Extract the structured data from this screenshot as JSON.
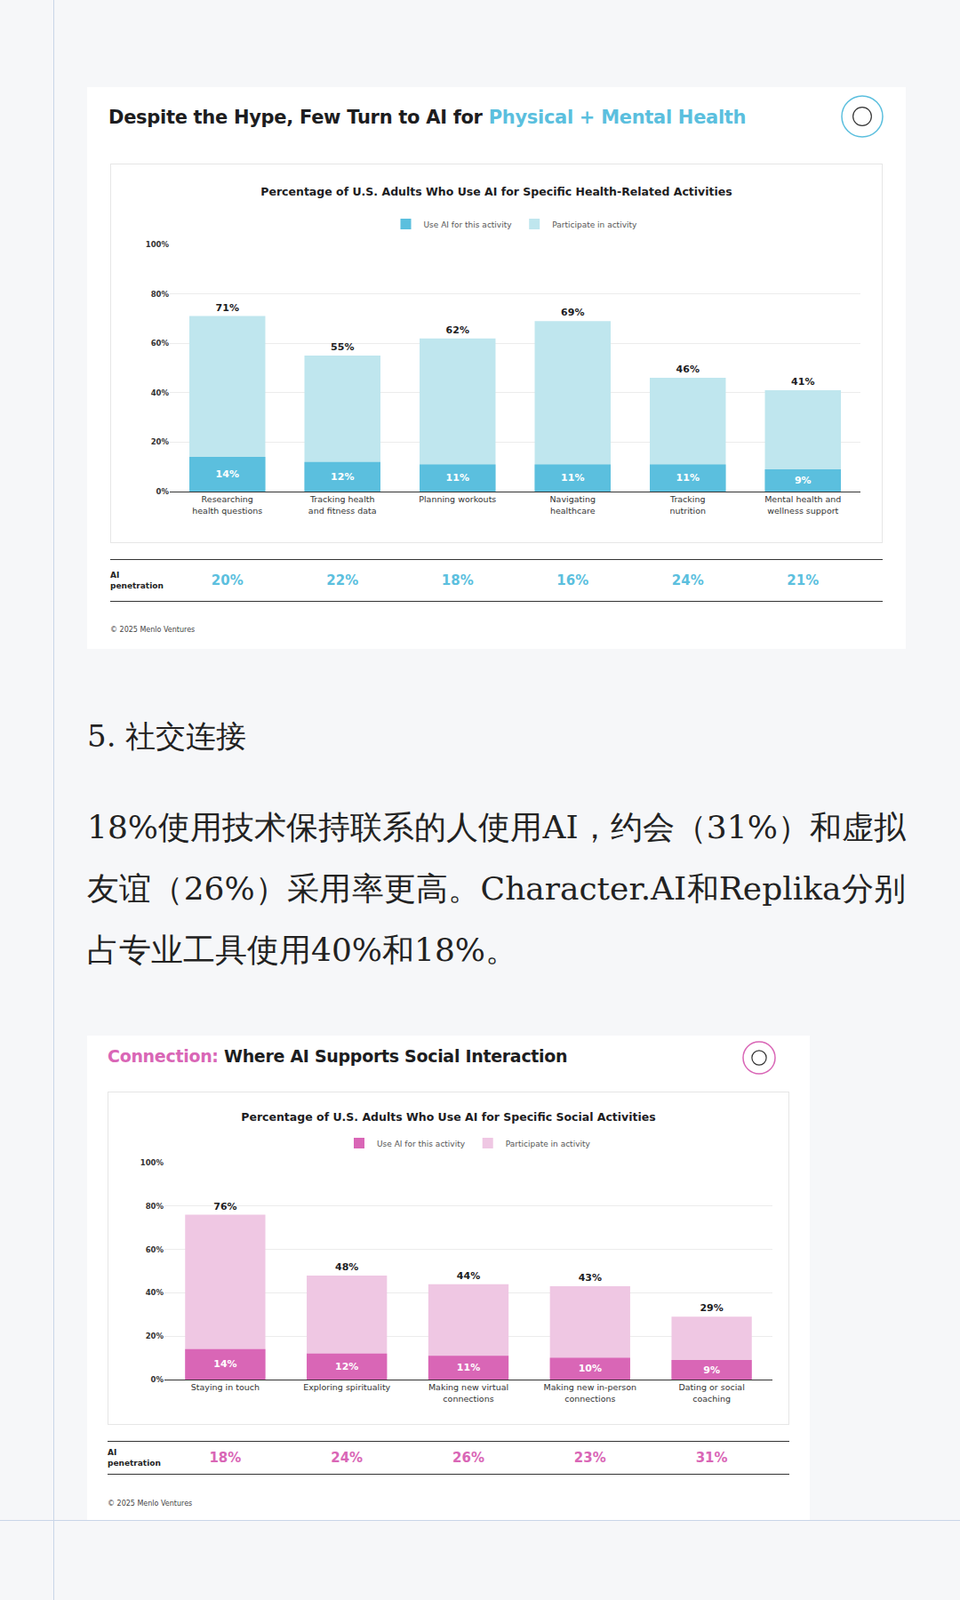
{
  "chart_data": [
    {
      "type": "bar",
      "title": "Despite the Hype, Few Turn to AI for Physical + Mental Health",
      "title_highlight": "Physical + Mental Health",
      "subtitle": "Percentage of U.S. Adults Who Use AI for Specific Health-Related Activities",
      "categories": [
        "Researching health questions",
        "Tracking health and fitness data",
        "Planning workouts",
        "Navigating healthcare",
        "Tracking nutrition",
        "Mental health and wellness support"
      ],
      "series": [
        {
          "name": "Use AI for this activity",
          "color": "#5bbfde",
          "values": [
            14,
            12,
            11,
            11,
            11,
            9
          ],
          "value_labels": [
            "14%",
            "12%",
            "11%",
            "11%",
            "11%",
            "9%"
          ]
        },
        {
          "name": "Participate in activity",
          "color": "#bfe6ee",
          "values": [
            71,
            55,
            62,
            69,
            46,
            41
          ],
          "value_labels": [
            "71%",
            "55%",
            "62%",
            "69%",
            "46%",
            "41%"
          ]
        }
      ],
      "ylim": [
        0,
        100
      ],
      "yticks": [
        {
          "value": 0,
          "label": "0%"
        },
        {
          "value": 20,
          "label": "20%"
        },
        {
          "value": 40,
          "label": "40%"
        },
        {
          "value": 60,
          "label": "60%"
        },
        {
          "value": 80,
          "label": "80%"
        },
        {
          "value": 100,
          "label": "100%"
        }
      ],
      "grid": true,
      "legend": "top",
      "data_labels": true,
      "stacked": false,
      "ai_penetration": {
        "label": "AI penetration",
        "values": [
          20,
          22,
          18,
          16,
          24,
          21
        ],
        "value_labels": [
          "20%",
          "22%",
          "18%",
          "16%",
          "24%",
          "21%"
        ]
      },
      "source": "© 2025 Menlo Ventures"
    },
    {
      "type": "bar",
      "title": "Connection: Where AI Supports Social Interaction",
      "title_highlight": "Connection:",
      "subtitle": "Percentage of U.S. Adults Who Use AI for Specific Social Activities",
      "categories": [
        "Staying in touch",
        "Exploring spirituality",
        "Making new virtual connections",
        "Making new in-person connections",
        "Dating or social coaching"
      ],
      "series": [
        {
          "name": "Use AI for this activity",
          "color": "#d966b6",
          "values": [
            14,
            12,
            11,
            10,
            9
          ],
          "value_labels": [
            "14%",
            "12%",
            "11%",
            "10%",
            "9%"
          ]
        },
        {
          "name": "Participate in activity",
          "color": "#efc7e3",
          "values": [
            76,
            48,
            44,
            43,
            29
          ],
          "value_labels": [
            "76%",
            "48%",
            "44%",
            "43%",
            "29%"
          ]
        }
      ],
      "ylim": [
        0,
        100
      ],
      "yticks": [
        {
          "value": 0,
          "label": "0%"
        },
        {
          "value": 20,
          "label": "20%"
        },
        {
          "value": 40,
          "label": "40%"
        },
        {
          "value": 60,
          "label": "60%"
        },
        {
          "value": 80,
          "label": "80%"
        },
        {
          "value": 100,
          "label": "100%"
        }
      ],
      "grid": true,
      "legend": "top",
      "data_labels": true,
      "stacked": false,
      "ai_penetration": {
        "label": "AI penetration",
        "values": [
          18,
          24,
          26,
          23,
          31
        ],
        "value_labels": [
          "18%",
          "24%",
          "26%",
          "23%",
          "31%"
        ]
      },
      "source": "© 2025 Menlo Ventures"
    }
  ],
  "document": {
    "heading": "5. 社交连接",
    "paragraph": "18%使用技术保持联系的人使用AI，约会（31%）和虚拟友谊（26%）采用率更高。Character.AI和Replika分别占专业工具使用40%和18%。"
  }
}
